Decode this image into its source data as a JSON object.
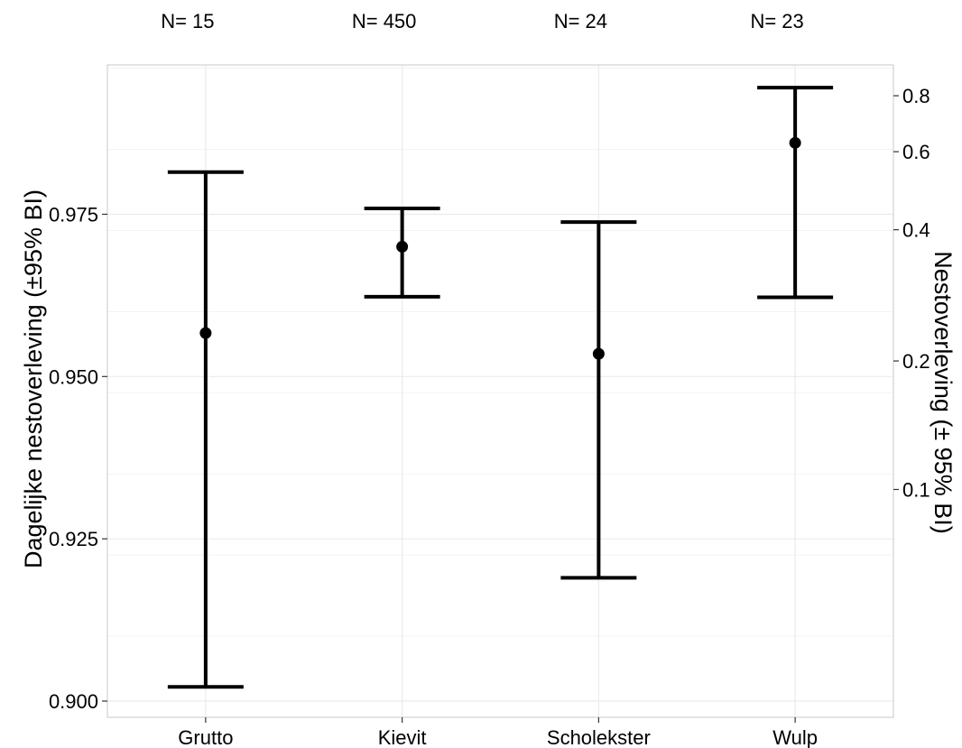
{
  "chart_data": {
    "type": "errorbar",
    "categories": [
      "Grutto",
      "Kievit",
      "Scholekster",
      "Wulp"
    ],
    "sample_size_labels": [
      "N= 15",
      "N= 450",
      "N= 24",
      "N= 23"
    ],
    "series": [
      {
        "values": [
          0.9567,
          0.97,
          0.9535,
          0.986
        ],
        "lower": [
          0.9022,
          0.9623,
          0.919,
          0.9622
        ],
        "upper": [
          0.9815,
          0.9759,
          0.9738,
          0.9945
        ]
      }
    ],
    "ylabel": "Dagelijke nestoverleving (±95% BI)",
    "ylim": [
      0.8975,
      0.998
    ],
    "yticks": [
      0.9,
      0.925,
      0.95,
      0.975
    ],
    "ytick_labels": [
      "0.900",
      "0.925",
      "0.950",
      "0.975"
    ],
    "y2label": "Nestoverleving (± 95% BI)",
    "y2_scale": "log",
    "y2_transform": "daily_survival^33",
    "y2ticks": [
      0.1,
      0.2,
      0.4,
      0.6,
      0.8
    ],
    "y2tick_labels": [
      "0.1",
      "0.2",
      "0.4",
      "0.6",
      "0.8"
    ],
    "grid": true,
    "colors": {
      "marks": "#000000",
      "grid": "#ebebeb",
      "panel_border": "#c8c8c8"
    }
  }
}
